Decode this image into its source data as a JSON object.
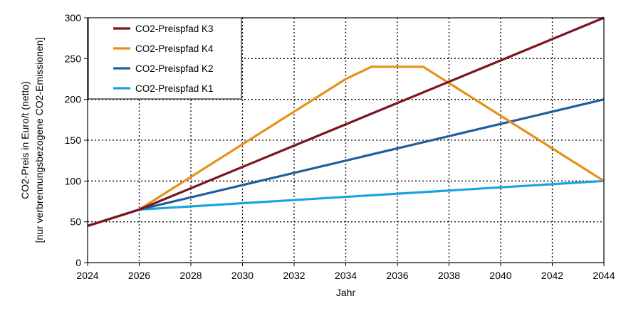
{
  "chart_data": {
    "type": "line",
    "xlabel": "Jahr",
    "ylabel_line1": "CO2-Preis in Euro/t (netto)",
    "ylabel_line2": "[nur verbrennungsbezogene CO2-Emissionen]",
    "xlim": [
      2024,
      2044
    ],
    "ylim": [
      0,
      300
    ],
    "xticks": [
      2024,
      2026,
      2028,
      2030,
      2032,
      2034,
      2036,
      2038,
      2040,
      2042,
      2044
    ],
    "yticks": [
      0,
      50,
      100,
      150,
      200,
      250,
      300
    ],
    "grid": true,
    "legend_position": "top-left",
    "series": [
      {
        "name": "CO2-Preispfad K3",
        "color": "#7b1420",
        "x": [
          2024,
          2026,
          2044
        ],
        "y": [
          45,
          65,
          300
        ]
      },
      {
        "name": "CO2-Preispfad K4",
        "color": "#e8901a",
        "x": [
          2024,
          2026,
          2034,
          2035,
          2037,
          2044
        ],
        "y": [
          45,
          65,
          225,
          240,
          240,
          100
        ]
      },
      {
        "name": "CO2-Preispfad K2",
        "color": "#1f5f9e",
        "x": [
          2024,
          2026,
          2044
        ],
        "y": [
          45,
          65,
          200
        ]
      },
      {
        "name": "CO2-Preispfad K1",
        "color": "#1aa3e0",
        "x": [
          2024,
          2026,
          2044
        ],
        "y": [
          45,
          65,
          100
        ]
      }
    ]
  }
}
